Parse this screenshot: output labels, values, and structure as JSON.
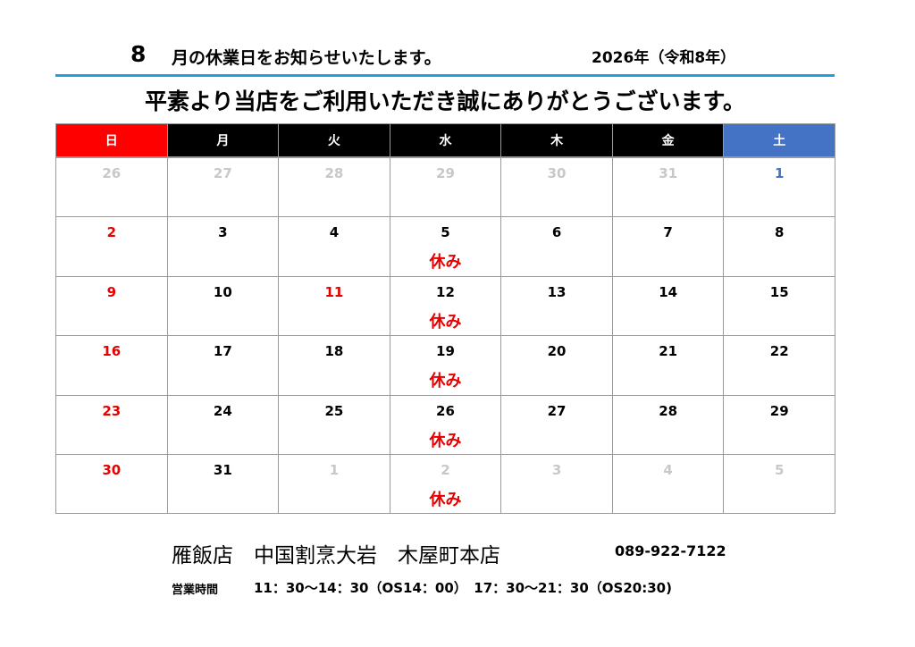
{
  "header": {
    "month": "8",
    "title": "月の休業日をお知らせいたします。",
    "year": "2026年（令和8年）",
    "message": "平素より当店をご利用いただき誠にありがとうございます。"
  },
  "calendar": {
    "weekdays": [
      {
        "label": "日",
        "color": "#ff0000"
      },
      {
        "label": "月",
        "color": "#000000"
      },
      {
        "label": "火",
        "color": "#000000"
      },
      {
        "label": "水",
        "color": "#000000"
      },
      {
        "label": "木",
        "color": "#000000"
      },
      {
        "label": "金",
        "color": "#000000"
      },
      {
        "label": "土",
        "color": "#4472c4"
      }
    ],
    "weeks": [
      [
        {
          "day": 26,
          "color": "#c8c8c8"
        },
        {
          "day": 27,
          "color": "#c8c8c8"
        },
        {
          "day": 28,
          "color": "#c8c8c8"
        },
        {
          "day": 29,
          "color": "#c8c8c8"
        },
        {
          "day": 30,
          "color": "#c8c8c8"
        },
        {
          "day": 31,
          "color": "#c8c8c8"
        },
        {
          "day": 1,
          "color": "#4472c4"
        }
      ],
      [
        {
          "day": 2,
          "color": "#e60000"
        },
        {
          "day": 3
        },
        {
          "day": 4
        },
        {
          "day": 5,
          "note": "休み"
        },
        {
          "day": 6
        },
        {
          "day": 7
        },
        {
          "day": 8
        }
      ],
      [
        {
          "day": 9,
          "color": "#e60000"
        },
        {
          "day": 10
        },
        {
          "day": 11,
          "color": "#e60000"
        },
        {
          "day": 12,
          "note": "休み"
        },
        {
          "day": 13
        },
        {
          "day": 14
        },
        {
          "day": 15
        }
      ],
      [
        {
          "day": 16,
          "color": "#e60000"
        },
        {
          "day": 17
        },
        {
          "day": 18
        },
        {
          "day": 19,
          "note": "休み"
        },
        {
          "day": 20
        },
        {
          "day": 21
        },
        {
          "day": 22
        }
      ],
      [
        {
          "day": 23,
          "color": "#e60000"
        },
        {
          "day": 24
        },
        {
          "day": 25
        },
        {
          "day": 26,
          "note": "休み"
        },
        {
          "day": 27
        },
        {
          "day": 28
        },
        {
          "day": 29
        }
      ],
      [
        {
          "day": 30,
          "color": "#e60000"
        },
        {
          "day": 31
        },
        {
          "day": 1,
          "color": "#c8c8c8"
        },
        {
          "day": 2,
          "color": "#c8c8c8",
          "note": "休み"
        },
        {
          "day": 3,
          "color": "#c8c8c8"
        },
        {
          "day": 4,
          "color": "#c8c8c8"
        },
        {
          "day": 5,
          "color": "#c8c8c8"
        }
      ]
    ]
  },
  "footer": {
    "shop": "雁飯店　中国割烹大岩　木屋町本店",
    "phone": "089-922-7122",
    "hours_label": "営業時間",
    "hours": "11：30～14：30（OS14：00）　17：30～21：30（OS20:30)"
  }
}
